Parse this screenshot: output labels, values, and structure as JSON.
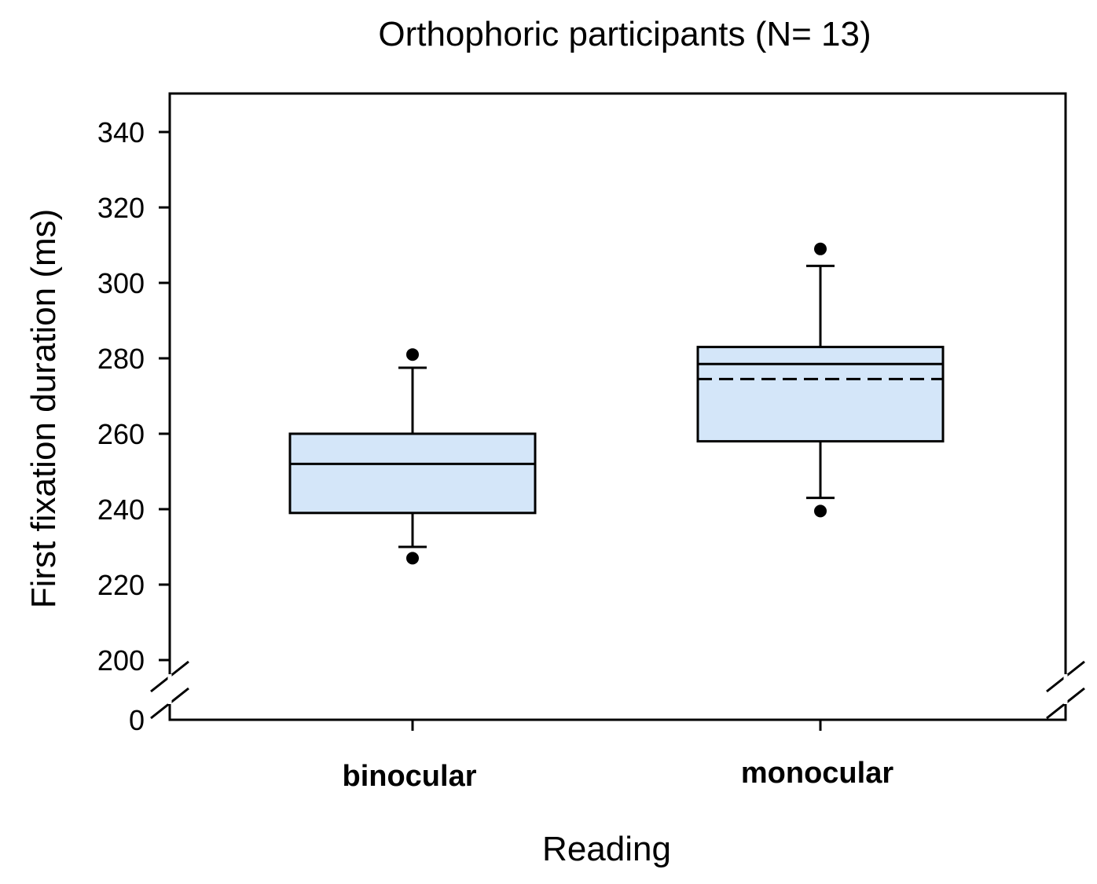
{
  "chart_data": {
    "type": "box",
    "title": "Orthophoric participants (N= 13)",
    "xlabel": "Reading",
    "ylabel": "First fixation duration (ms)",
    "categories": [
      "binocular",
      "monocular"
    ],
    "yticks": [
      0,
      200,
      220,
      240,
      260,
      280,
      300,
      320,
      340
    ],
    "ytick_labels": [
      "0",
      "200",
      "220",
      "240",
      "260",
      "280",
      "300",
      "320",
      "340"
    ],
    "ylim": [
      0,
      350
    ],
    "axis_break": [
      0,
      200
    ],
    "boxes": [
      {
        "category": "binocular",
        "whisker_low": 230,
        "q1": 239,
        "median": 252,
        "q3": 260,
        "whisker_high": 277.5,
        "outliers": [
          281,
          227
        ]
      },
      {
        "category": "monocular",
        "whisker_low": 243,
        "q1": 258,
        "median": 278.5,
        "mean": 274.5,
        "q3": 283,
        "whisker_high": 304.5,
        "outliers": [
          309,
          239.5
        ]
      }
    ],
    "box_fill": "#d4e6f9",
    "line_color": "#000000"
  }
}
